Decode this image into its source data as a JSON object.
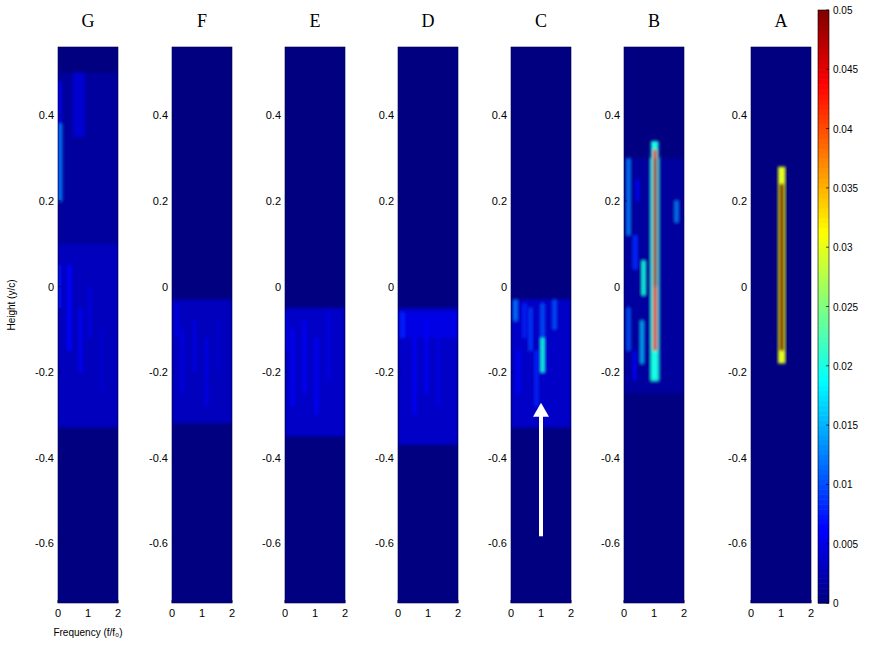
{
  "chart_data": [
    {
      "type": "heatmap",
      "title": "G",
      "x_label": "Frequency (f/f₀)",
      "y_label": "Height (y/c)",
      "xlim": [
        0,
        2
      ],
      "xticks": [
        0,
        1,
        2
      ],
      "ylim": [
        -0.74,
        0.56
      ],
      "yticks": [
        -0.6,
        -0.4,
        -0.2,
        0,
        0.2,
        0.4
      ],
      "cells": [
        [
          0,
          2,
          -0.33,
          0.1,
          0.003
        ],
        [
          0,
          2,
          0.1,
          0.5,
          0.0015
        ],
        [
          0,
          0.12,
          0.2,
          0.38,
          0.012
        ],
        [
          0,
          0.1,
          0.38,
          0.48,
          0.006
        ],
        [
          0.5,
          0.9,
          0.35,
          0.5,
          0.004
        ],
        [
          0.3,
          0.45,
          -0.15,
          0.05,
          0.006
        ],
        [
          0.7,
          0.8,
          -0.2,
          -0.05,
          0.006
        ],
        [
          1.0,
          1.1,
          -0.12,
          0.0,
          0.005
        ],
        [
          0,
          0.1,
          -0.05,
          0.05,
          0.007
        ],
        [
          1.4,
          1.5,
          -0.25,
          -0.1,
          0.004
        ]
      ]
    },
    {
      "type": "heatmap",
      "title": "F",
      "xlim": [
        0,
        2
      ],
      "xticks": [
        0,
        1,
        2
      ],
      "ylim": [
        -0.74,
        0.56
      ],
      "yticks": [
        -0.6,
        -0.4,
        -0.2,
        0,
        0.2,
        0.4
      ],
      "cells": [
        [
          0,
          2,
          -0.32,
          -0.03,
          0.003
        ],
        [
          0.3,
          0.4,
          -0.25,
          -0.1,
          0.005
        ],
        [
          0.7,
          0.8,
          -0.2,
          -0.08,
          0.005
        ],
        [
          1.1,
          1.2,
          -0.28,
          -0.12,
          0.005
        ],
        [
          0.1,
          0.2,
          -0.12,
          -0.04,
          0.005
        ],
        [
          1.5,
          1.6,
          -0.2,
          -0.08,
          0.004
        ]
      ]
    },
    {
      "type": "heatmap",
      "title": "E",
      "xlim": [
        0,
        2
      ],
      "xticks": [
        0,
        1,
        2
      ],
      "ylim": [
        -0.74,
        0.56
      ],
      "yticks": [
        -0.6,
        -0.4,
        -0.2,
        0,
        0.2,
        0.4
      ],
      "cells": [
        [
          0,
          2,
          -0.35,
          -0.05,
          0.0035
        ],
        [
          0.2,
          0.3,
          -0.28,
          -0.1,
          0.006
        ],
        [
          0.6,
          0.7,
          -0.25,
          -0.08,
          0.006
        ],
        [
          1.0,
          1.1,
          -0.3,
          -0.12,
          0.006
        ],
        [
          1.4,
          1.5,
          -0.22,
          -0.06,
          0.005
        ],
        [
          0.0,
          0.1,
          -0.15,
          -0.06,
          0.005
        ]
      ]
    },
    {
      "type": "heatmap",
      "title": "D",
      "xlim": [
        0,
        2
      ],
      "xticks": [
        0,
        1,
        2
      ],
      "ylim": [
        -0.74,
        0.56
      ],
      "yticks": [
        -0.6,
        -0.4,
        -0.2,
        0,
        0.2,
        0.4
      ],
      "cells": [
        [
          0,
          2,
          -0.37,
          -0.05,
          0.0035
        ],
        [
          0,
          2,
          -0.12,
          -0.06,
          0.005
        ],
        [
          0.1,
          0.2,
          -0.12,
          -0.06,
          0.008
        ],
        [
          0.5,
          0.6,
          -0.3,
          -0.12,
          0.006
        ],
        [
          0.9,
          1.0,
          -0.25,
          -0.08,
          0.006
        ],
        [
          1.3,
          1.4,
          -0.28,
          -0.1,
          0.005
        ]
      ]
    },
    {
      "type": "heatmap",
      "title": "C",
      "xlim": [
        0,
        2
      ],
      "xticks": [
        0,
        1,
        2
      ],
      "ylim": [
        -0.74,
        0.56
      ],
      "yticks": [
        -0.6,
        -0.4,
        -0.2,
        0,
        0.2,
        0.4
      ],
      "cells": [
        [
          0,
          2,
          -0.33,
          -0.03,
          0.0035
        ],
        [
          0.1,
          0.2,
          -0.08,
          -0.03,
          0.012
        ],
        [
          0.4,
          0.5,
          -0.12,
          -0.04,
          0.008
        ],
        [
          0.6,
          0.7,
          -0.15,
          -0.05,
          0.009
        ],
        [
          0.8,
          0.9,
          -0.28,
          -0.15,
          0.008
        ],
        [
          1.0,
          1.1,
          -0.2,
          -0.12,
          0.02
        ],
        [
          1.0,
          1.1,
          -0.12,
          -0.04,
          0.01
        ],
        [
          1.4,
          1.5,
          -0.1,
          -0.03,
          0.01
        ],
        [
          0.2,
          0.3,
          -0.25,
          -0.15,
          0.006
        ]
      ]
    },
    {
      "type": "heatmap",
      "title": "B",
      "xlim": [
        0,
        2
      ],
      "xticks": [
        0,
        1,
        2
      ],
      "ylim": [
        -0.74,
        0.56
      ],
      "yticks": [
        -0.6,
        -0.4,
        -0.2,
        0,
        0.2,
        0.4
      ],
      "cells": [
        [
          0,
          2,
          -0.25,
          0.3,
          0.0015
        ],
        [
          0.9,
          1.15,
          -0.22,
          0.34,
          0.02
        ],
        [
          0.97,
          1.1,
          -0.15,
          0.32,
          0.045
        ],
        [
          1.0,
          1.08,
          0.0,
          0.3,
          0.05
        ],
        [
          0.1,
          0.2,
          0.12,
          0.3,
          0.012
        ],
        [
          0.1,
          0.2,
          -0.15,
          -0.05,
          0.01
        ],
        [
          0.3,
          0.45,
          0.04,
          0.12,
          0.008
        ],
        [
          0.6,
          0.7,
          -0.02,
          0.06,
          0.02
        ],
        [
          0.55,
          0.65,
          -0.18,
          -0.08,
          0.015
        ],
        [
          0.3,
          0.4,
          -0.22,
          -0.15,
          0.006
        ],
        [
          1.7,
          1.8,
          0.15,
          0.2,
          0.012
        ],
        [
          0.4,
          0.5,
          0.2,
          0.25,
          0.006
        ]
      ]
    },
    {
      "type": "heatmap",
      "title": "A",
      "xlim": [
        0,
        2
      ],
      "xticks": [
        0,
        1,
        2
      ],
      "ylim": [
        -0.74,
        0.56
      ],
      "yticks": [
        -0.6,
        -0.4,
        -0.2,
        0,
        0.2,
        0.4
      ],
      "cells": [
        [
          0.9,
          1.15,
          -0.18,
          0.28,
          0.03
        ],
        [
          0.95,
          1.1,
          -0.15,
          0.24,
          0.05
        ]
      ],
      "colorbar": {
        "range": [
          0,
          0.05
        ],
        "ticks": [
          0,
          0.005,
          0.01,
          0.015,
          0.02,
          0.025,
          0.03,
          0.035,
          0.04,
          0.045,
          0.05
        ]
      }
    }
  ]
}
